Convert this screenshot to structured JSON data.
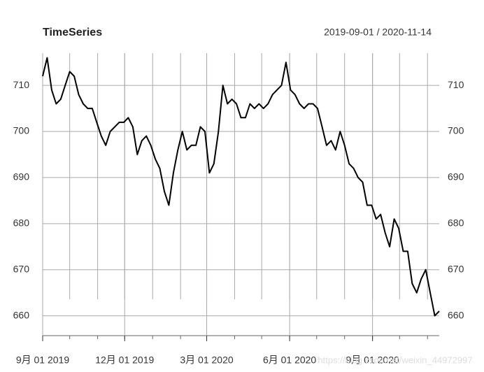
{
  "chart_data": {
    "type": "line",
    "title": "TimeSeries",
    "subtitle": "2019-09-01 / 2020-11-14",
    "x": [
      "2019-09-01",
      "2019-09-06",
      "2019-09-11",
      "2019-09-16",
      "2019-09-21",
      "2019-09-26",
      "2019-10-01",
      "2019-10-06",
      "2019-10-11",
      "2019-10-16",
      "2019-10-21",
      "2019-10-26",
      "2019-10-31",
      "2019-11-05",
      "2019-11-10",
      "2019-11-15",
      "2019-11-20",
      "2019-11-25",
      "2019-11-30",
      "2019-12-05",
      "2019-12-10",
      "2019-12-15",
      "2019-12-20",
      "2019-12-25",
      "2019-12-30",
      "2020-01-04",
      "2020-01-09",
      "2020-01-14",
      "2020-01-19",
      "2020-01-24",
      "2020-01-29",
      "2020-02-03",
      "2020-02-08",
      "2020-02-13",
      "2020-02-18",
      "2020-02-23",
      "2020-02-28",
      "2020-03-04",
      "2020-03-09",
      "2020-03-14",
      "2020-03-19",
      "2020-03-24",
      "2020-03-29",
      "2020-04-03",
      "2020-04-08",
      "2020-04-13",
      "2020-04-18",
      "2020-04-23",
      "2020-04-28",
      "2020-05-03",
      "2020-05-08",
      "2020-05-13",
      "2020-05-18",
      "2020-05-23",
      "2020-05-28",
      "2020-06-02",
      "2020-06-07",
      "2020-06-12",
      "2020-06-17",
      "2020-06-22",
      "2020-06-27",
      "2020-07-02",
      "2020-07-07",
      "2020-07-12",
      "2020-07-17",
      "2020-07-22",
      "2020-07-27",
      "2020-08-01",
      "2020-08-06",
      "2020-08-11",
      "2020-08-16",
      "2020-08-21",
      "2020-08-26",
      "2020-08-31",
      "2020-09-05",
      "2020-09-10",
      "2020-09-15",
      "2020-09-20",
      "2020-09-25",
      "2020-09-30",
      "2020-10-05",
      "2020-10-10",
      "2020-10-15",
      "2020-10-20",
      "2020-10-25",
      "2020-10-30",
      "2020-11-04",
      "2020-11-09",
      "2020-11-14"
    ],
    "series": [
      {
        "color": "#000000",
        "values": [
          712,
          716,
          709,
          706,
          707,
          710,
          713,
          712,
          708,
          706,
          705,
          705,
          702,
          699,
          697,
          700,
          701,
          702,
          702,
          703,
          701,
          695,
          698,
          699,
          697,
          694,
          692,
          687,
          684,
          691,
          696,
          700,
          696,
          697,
          697,
          701,
          700,
          691,
          693,
          700,
          710,
          706,
          707,
          706,
          703,
          703,
          706,
          705,
          706,
          705,
          706,
          708,
          709,
          710,
          715,
          709,
          708,
          706,
          705,
          706,
          706,
          705,
          701,
          697,
          698,
          696,
          700,
          697,
          693,
          692,
          690,
          689,
          684,
          684,
          681,
          682,
          678,
          675,
          681,
          679,
          674,
          674,
          667,
          665,
          668,
          670,
          665,
          660,
          661
        ]
      }
    ],
    "xlim": [
      "2019-09-01",
      "2020-11-14"
    ],
    "xticks": [
      {
        "value": "2019-09-01",
        "label": "9月 01 2019"
      },
      {
        "value": "2019-12-01",
        "label": "12月 01 2019"
      },
      {
        "value": "2020-03-01",
        "label": "3月 01 2020"
      },
      {
        "value": "2020-06-01",
        "label": "6月 01 2020"
      },
      {
        "value": "2020-09-01",
        "label": "9月 01 2020"
      }
    ],
    "ylim": [
      656,
      717
    ],
    "yticks": [
      660,
      670,
      680,
      690,
      700,
      710
    ],
    "grid": true,
    "watermark": "https://blog.csdn.net/weixin_44972997"
  }
}
